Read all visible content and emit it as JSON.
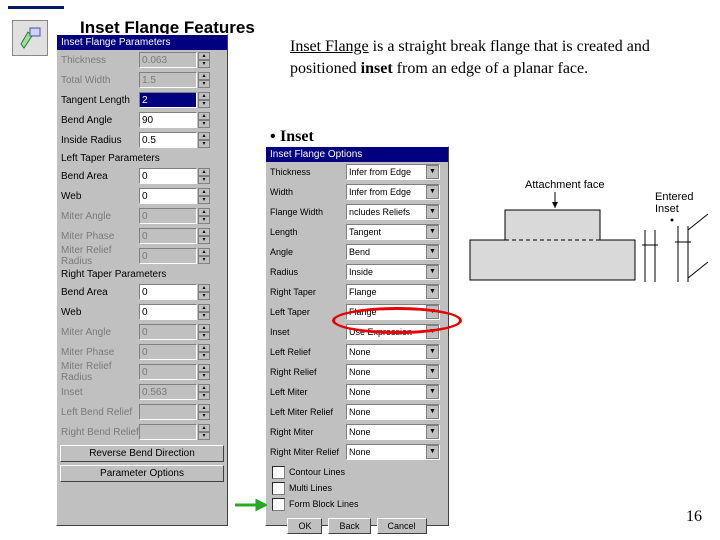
{
  "header": {
    "title": "Inset Flange Features"
  },
  "description": {
    "line1_underlined": "Inset Flange",
    "line1_rest": " is a straight break flange that is created and positioned ",
    "line1_bold": "inset",
    "line1_end": " from an edge of a planar face."
  },
  "bullet": {
    "text": "Inset"
  },
  "panel_left": {
    "title": "Inset Flange Parameters",
    "rows": [
      {
        "label": "Thickness",
        "value": "0.063",
        "dim": true
      },
      {
        "label": "Total Width",
        "value": "1.5",
        "dim": true
      },
      {
        "label": "Tangent Length",
        "value": "2",
        "selected": true
      },
      {
        "label": "Bend Angle",
        "value": "90"
      },
      {
        "label": "Inside Radius",
        "value": "0.5"
      }
    ],
    "section_left_taper": "Left Taper Parameters",
    "rows_lt": [
      {
        "label": "Bend Area",
        "value": "0"
      },
      {
        "label": "Web",
        "value": "0"
      },
      {
        "label": "Miter Angle",
        "value": "0",
        "dim": true
      },
      {
        "label": "Miter Phase",
        "value": "0",
        "dim": true
      },
      {
        "label": "Miter Relief Radius",
        "value": "0",
        "dim": true
      }
    ],
    "section_right_taper": "Right Taper Parameters",
    "rows_rt": [
      {
        "label": "Bend Area",
        "value": "0"
      },
      {
        "label": "Web",
        "value": "0"
      },
      {
        "label": "Miter Angle",
        "value": "0",
        "dim": true
      },
      {
        "label": "Miter Phase",
        "value": "0",
        "dim": true
      },
      {
        "label": "Miter Relief Radius",
        "value": "0",
        "dim": true
      }
    ],
    "rows_bot": [
      {
        "label": "Inset",
        "value": "0.563",
        "dim": true
      },
      {
        "label": "Left Bend Relief",
        "value": "",
        "dim": true
      },
      {
        "label": "Right Bend Relief",
        "value": "",
        "dim": true
      }
    ],
    "buttons": {
      "reverse": "Reverse Bend Direction",
      "options": "Parameter Options"
    }
  },
  "panel_right": {
    "title": "Inset Flange Options",
    "rows": [
      {
        "label": "Thickness",
        "value": "Infer from Edge"
      },
      {
        "label": "Width",
        "value": "Infer from Edge"
      },
      {
        "label": "Flange Width",
        "value": "ncludes Reliefs"
      },
      {
        "label": "Length",
        "value": "Tangent"
      },
      {
        "label": "Angle",
        "value": "Bend"
      },
      {
        "label": "Radius",
        "value": "Inside"
      },
      {
        "label": "Right Taper",
        "value": "Flange"
      },
      {
        "label": "Left Taper",
        "value": "Flange"
      },
      {
        "label": "Inset",
        "value": "Use Expression",
        "highlight": true
      },
      {
        "label": "Left Relief",
        "value": "None"
      },
      {
        "label": "Right Relief",
        "value": "None"
      },
      {
        "label": "Left Miter",
        "value": "None"
      },
      {
        "label": "Left Miter Relief",
        "value": "None"
      },
      {
        "label": "Right Miter",
        "value": "None"
      },
      {
        "label": "Right Miter Relief",
        "value": "None"
      }
    ],
    "checks": [
      {
        "label": "Contour Lines"
      },
      {
        "label": "Multi Lines"
      },
      {
        "label": "Form Block Lines"
      }
    ],
    "buttons": {
      "ok": "OK",
      "back": "Back",
      "cancel": "Cancel"
    }
  },
  "diagram": {
    "label_attach": "Attachment face",
    "label_entered": "Entered Inset",
    "colors": {
      "stroke": "#000000",
      "fill": "#d9d9d9"
    }
  },
  "page_number": "16"
}
